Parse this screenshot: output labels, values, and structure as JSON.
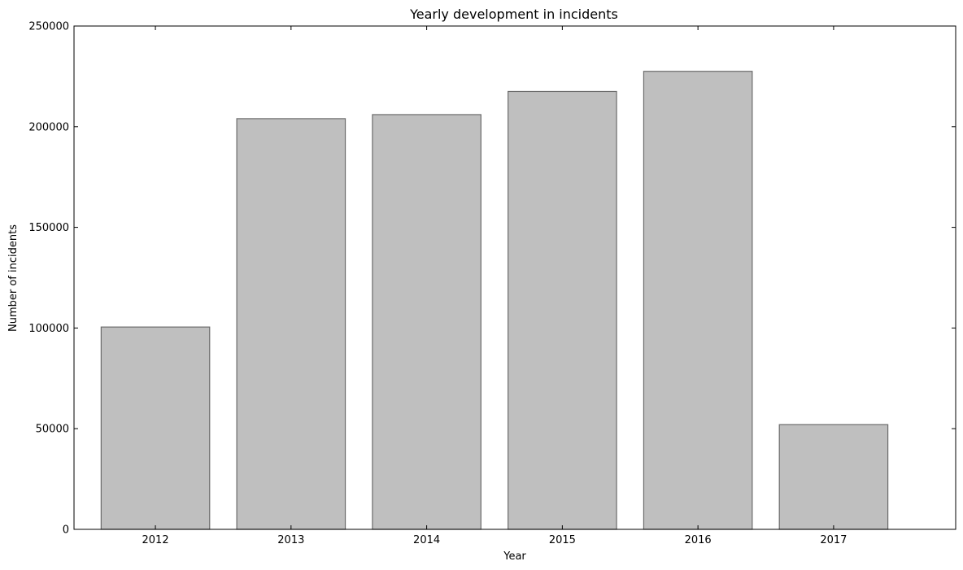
{
  "chart_data": {
    "type": "bar",
    "title": "Yearly development in incidents",
    "xlabel": "Year",
    "ylabel": "Number of incidents",
    "categories": [
      "2012",
      "2013",
      "2014",
      "2015",
      "2016",
      "2017"
    ],
    "values": [
      100500,
      204000,
      206000,
      217500,
      227500,
      52000
    ],
    "ylim": [
      0,
      250000
    ],
    "yticks": [
      0,
      50000,
      100000,
      150000,
      200000,
      250000
    ],
    "ytick_labels": [
      "0",
      "50000",
      "100000",
      "150000",
      "200000",
      "250000"
    ],
    "grid": false,
    "legend": "none",
    "bar_color": "#bfbfbf",
    "bar_edge_color": "#6b6b6b"
  }
}
